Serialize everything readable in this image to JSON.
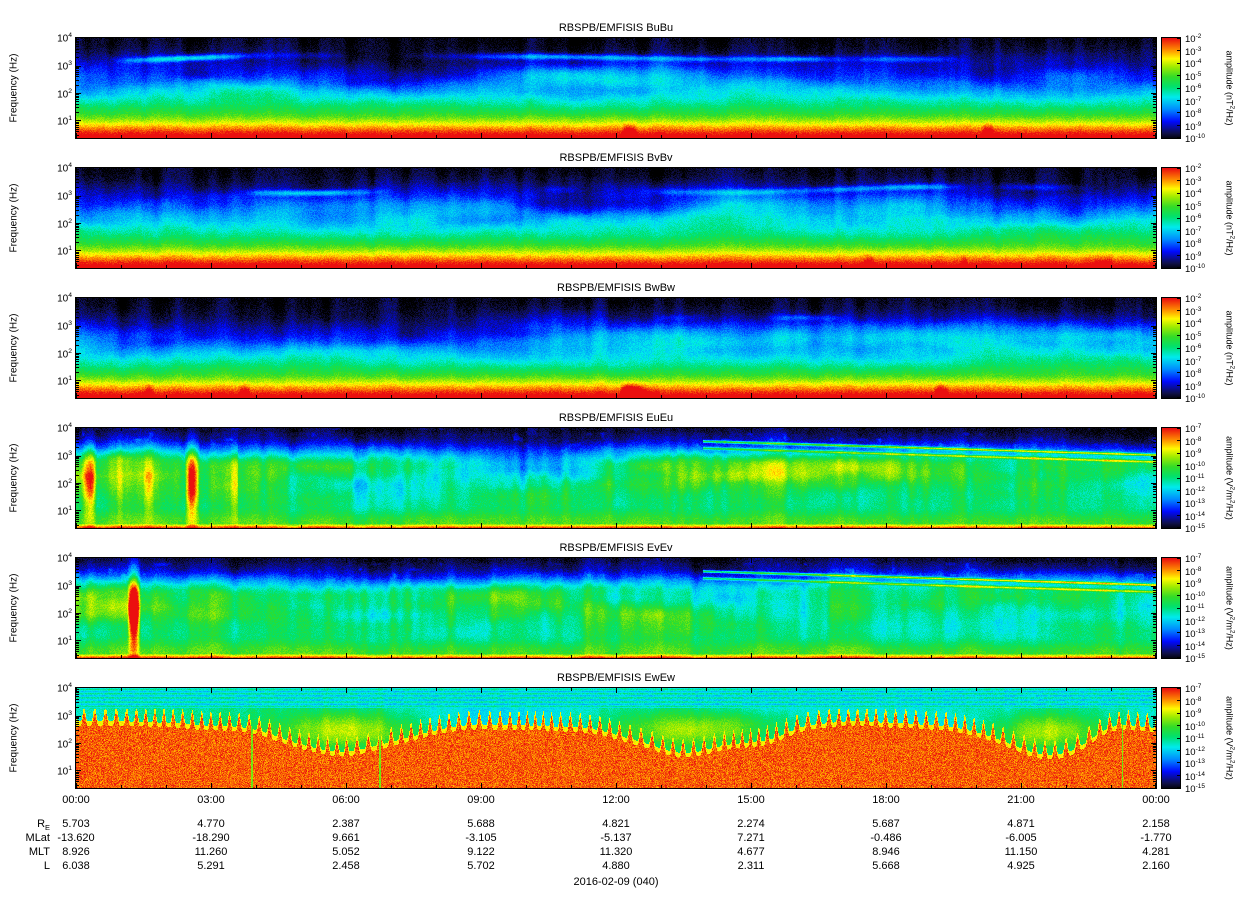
{
  "figure": {
    "date_label": "2016-02-09 (040)"
  },
  "x_axis": {
    "tick_labels": [
      "00:00",
      "03:00",
      "06:00",
      "09:00",
      "12:00",
      "15:00",
      "18:00",
      "21:00",
      "00:00"
    ]
  },
  "ephemeris": {
    "rows": [
      {
        "label": "R_E",
        "values": [
          "5.703",
          "4.770",
          "2.387",
          "5.688",
          "4.821",
          "2.274",
          "5.687",
          "4.871",
          "2.158"
        ]
      },
      {
        "label": "MLat",
        "values": [
          "-13.620",
          "-18.290",
          "9.661",
          "-3.105",
          "-5.137",
          "7.271",
          "-0.486",
          "-6.005",
          "-1.770"
        ]
      },
      {
        "label": "MLT",
        "values": [
          "8.926",
          "11.260",
          "5.052",
          "9.122",
          "11.320",
          "4.677",
          "8.946",
          "11.150",
          "4.281"
        ]
      },
      {
        "label": "L",
        "values": [
          "6.038",
          "5.291",
          "2.458",
          "5.702",
          "4.880",
          "2.311",
          "5.668",
          "4.925",
          "2.160"
        ]
      }
    ]
  },
  "chart_data": [
    {
      "type": "heatmap",
      "title": "RBSPB/EMFISIS BuBu",
      "ylabel": "Frequency (Hz)",
      "y_scale": "log",
      "y_range_hz": [
        2.5,
        10000
      ],
      "y_tick_labels": [
        "10^4",
        "10^3",
        "10^2",
        "10^1"
      ],
      "colorbar": {
        "scale": "log",
        "label": "amplitude (nT^2/Hz)",
        "tick_labels": [
          "10^-2",
          "10^-3",
          "10^-4",
          "10^-5",
          "10^-6",
          "10^-7",
          "10^-8",
          "10^-9",
          "10^-10"
        ]
      },
      "style": "B"
    },
    {
      "type": "heatmap",
      "title": "RBSPB/EMFISIS BvBv",
      "ylabel": "Frequency (Hz)",
      "y_scale": "log",
      "y_range_hz": [
        2.5,
        10000
      ],
      "y_tick_labels": [
        "10^4",
        "10^3",
        "10^2",
        "10^1"
      ],
      "colorbar": {
        "scale": "log",
        "label": "amplitude (nT^2/Hz)",
        "tick_labels": [
          "10^-2",
          "10^-3",
          "10^-4",
          "10^-5",
          "10^-6",
          "10^-7",
          "10^-8",
          "10^-9",
          "10^-10"
        ]
      },
      "style": "B"
    },
    {
      "type": "heatmap",
      "title": "RBSPB/EMFISIS BwBw",
      "ylabel": "Frequency (Hz)",
      "y_scale": "log",
      "y_range_hz": [
        2.5,
        10000
      ],
      "y_tick_labels": [
        "10^4",
        "10^3",
        "10^2",
        "10^1"
      ],
      "colorbar": {
        "scale": "log",
        "label": "amplitude (nT^2/Hz)",
        "tick_labels": [
          "10^-2",
          "10^-3",
          "10^-4",
          "10^-5",
          "10^-6",
          "10^-7",
          "10^-8",
          "10^-9",
          "10^-10"
        ]
      },
      "style": "B"
    },
    {
      "type": "heatmap",
      "title": "RBSPB/EMFISIS EuEu",
      "ylabel": "Frequency (Hz)",
      "y_scale": "log",
      "y_range_hz": [
        2.5,
        10000
      ],
      "y_tick_labels": [
        "10^4",
        "10^3",
        "10^2",
        "10^1"
      ],
      "colorbar": {
        "scale": "log",
        "label": "amplitude (V^2/m^2/Hz)",
        "tick_labels": [
          "10^-7",
          "10^-8",
          "10^-9",
          "10^-10",
          "10^-11",
          "10^-12",
          "10^-13",
          "10^-14",
          "10^-15"
        ]
      },
      "style": "E"
    },
    {
      "type": "heatmap",
      "title": "RBSPB/EMFISIS EvEv",
      "ylabel": "Frequency (Hz)",
      "y_scale": "log",
      "y_range_hz": [
        2.5,
        10000
      ],
      "y_tick_labels": [
        "10^4",
        "10^3",
        "10^2",
        "10^1"
      ],
      "colorbar": {
        "scale": "log",
        "label": "amplitude (V^2/m^2/Hz)",
        "tick_labels": [
          "10^-7",
          "10^-8",
          "10^-9",
          "10^-10",
          "10^-11",
          "10^-12",
          "10^-13",
          "10^-14",
          "10^-15"
        ]
      },
      "style": "E"
    },
    {
      "type": "heatmap",
      "title": "RBSPB/EMFISIS EwEw",
      "ylabel": "Frequency (Hz)",
      "y_scale": "log",
      "y_range_hz": [
        2.5,
        10000
      ],
      "y_tick_labels": [
        "10^4",
        "10^3",
        "10^2",
        "10^1"
      ],
      "colorbar": {
        "scale": "log",
        "label": "amplitude (V^2/m^2/Hz)",
        "tick_labels": [
          "10^-7",
          "10^-8",
          "10^-9",
          "10^-10",
          "10^-11",
          "10^-12",
          "10^-13",
          "10^-14",
          "10^-15"
        ]
      },
      "style": "Ew"
    }
  ]
}
